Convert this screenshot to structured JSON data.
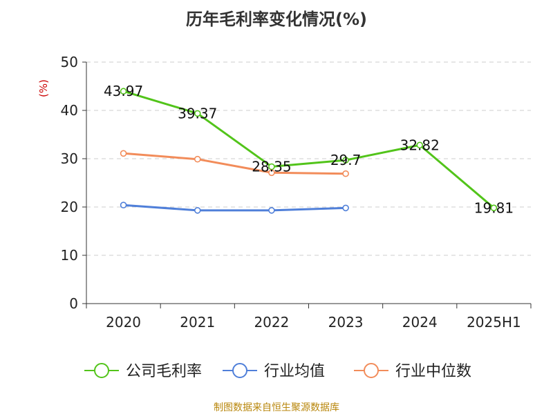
{
  "title": "历年毛利率变化情况(%)",
  "source": "制图数据来自恒生聚源数据库",
  "chart_data": {
    "type": "line",
    "title": "历年毛利率变化情况(%)",
    "ylabel": "(%)",
    "xlabel": "",
    "categories": [
      "2020",
      "2021",
      "2022",
      "2023",
      "2024",
      "2025H1"
    ],
    "ylim": [
      0,
      50
    ],
    "yticks": [
      0,
      10,
      20,
      30,
      40,
      50
    ],
    "grid": true,
    "legend_position": "bottom",
    "series": [
      {
        "name": "公司毛利率",
        "color": "#52c41a",
        "values": [
          43.97,
          39.37,
          28.35,
          29.7,
          32.82,
          19.81
        ],
        "labels": [
          "43.97",
          "39.37",
          "28.35",
          "29.7",
          "32.82",
          "19.81"
        ]
      },
      {
        "name": "行业均值",
        "color": "#4f7fd9",
        "values": [
          20.4,
          19.3,
          19.3,
          19.8,
          null,
          null
        ],
        "labels": []
      },
      {
        "name": "行业中位数",
        "color": "#f28c5a",
        "values": [
          31.1,
          29.9,
          27.1,
          26.9,
          null,
          null
        ],
        "labels": []
      }
    ]
  }
}
